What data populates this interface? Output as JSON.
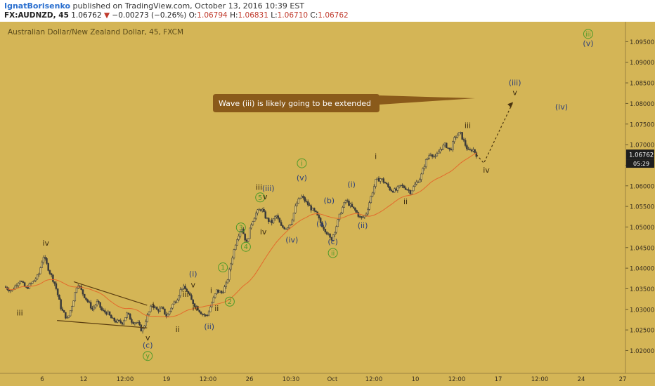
{
  "header": {
    "author": "IgnatBorisenko",
    "published_text": " published on TradingView.com, October 13, 2016 10:39 EST",
    "symbol": "FX:AUDNZD, 45",
    "last": "1.06762",
    "change": "−0.00273 (−0.26%)",
    "o_label": "O:",
    "o_value": "1.06794",
    "h_label": "H:",
    "h_value": "1.06831",
    "l_label": "L:",
    "l_value": "1.06710",
    "c_label": "C:",
    "c_value": "1.06762"
  },
  "chart_title": "Australian Dollar/New Zealand Dollar, 45, FXCM",
  "annotation": "Wave (iii) is likely going to be extended",
  "colors": {
    "background": "#d4b556",
    "candles": "#3a3a3a",
    "moving_average": "#e36a2c",
    "wave_labels_major": "#2b3f7a",
    "wave_labels_minor": "#3a2a10",
    "circled_labels": "#4e9a2a",
    "callout": "#8a5a1a"
  },
  "chart_data": {
    "type": "candlestick",
    "title": "Australian Dollar/New Zealand Dollar, 45, FXCM",
    "x_tick_labels": [
      "6",
      "12",
      "12:00",
      "19",
      "12:00",
      "26",
      "10:30",
      "Oct",
      "12:00",
      "10",
      "12:00",
      "17",
      "12:00",
      "24",
      "27"
    ],
    "y_tick_labels": [
      "1.09500",
      "1.09000",
      "1.08500",
      "1.08000",
      "1.07500",
      "1.07000",
      "1.06500",
      "1.06000",
      "1.05500",
      "1.05000",
      "1.04500",
      "1.04000",
      "1.03500",
      "1.03000",
      "1.02500",
      "1.02000"
    ],
    "ylim": [
      1.0165,
      1.0995
    ],
    "last_price": "1.06762",
    "countdown": "05:29",
    "price_path": [
      [
        0.0,
        1.0355
      ],
      [
        0.012,
        1.0345
      ],
      [
        0.025,
        1.0372
      ],
      [
        0.035,
        1.035
      ],
      [
        0.045,
        1.0365
      ],
      [
        0.055,
        1.0382
      ],
      [
        0.063,
        1.043
      ],
      [
        0.072,
        1.0395
      ],
      [
        0.082,
        1.036
      ],
      [
        0.092,
        1.03
      ],
      [
        0.102,
        1.0275
      ],
      [
        0.11,
        1.0315
      ],
      [
        0.118,
        1.0365
      ],
      [
        0.126,
        1.034
      ],
      [
        0.134,
        1.032
      ],
      [
        0.142,
        1.03
      ],
      [
        0.15,
        1.0318
      ],
      [
        0.158,
        1.0295
      ],
      [
        0.166,
        1.0292
      ],
      [
        0.174,
        1.0275
      ],
      [
        0.182,
        1.027
      ],
      [
        0.19,
        1.0268
      ],
      [
        0.198,
        1.029
      ],
      [
        0.206,
        1.027
      ],
      [
        0.214,
        1.0268
      ],
      [
        0.222,
        1.0247
      ],
      [
        0.23,
        1.0282
      ],
      [
        0.238,
        1.0312
      ],
      [
        0.246,
        1.0298
      ],
      [
        0.254,
        1.0302
      ],
      [
        0.262,
        1.0282
      ],
      [
        0.27,
        1.031
      ],
      [
        0.278,
        1.0325
      ],
      [
        0.286,
        1.0355
      ],
      [
        0.294,
        1.0345
      ],
      [
        0.302,
        1.032
      ],
      [
        0.31,
        1.0305
      ],
      [
        0.318,
        1.029
      ],
      [
        0.326,
        1.0283
      ],
      [
        0.334,
        1.0315
      ],
      [
        0.342,
        1.0345
      ],
      [
        0.35,
        1.034
      ],
      [
        0.358,
        1.0362
      ],
      [
        0.366,
        1.042
      ],
      [
        0.374,
        1.047
      ],
      [
        0.382,
        1.05
      ],
      [
        0.39,
        1.046
      ],
      [
        0.398,
        1.051
      ],
      [
        0.406,
        1.0535
      ],
      [
        0.414,
        1.0545
      ],
      [
        0.422,
        1.052
      ],
      [
        0.43,
        1.051
      ],
      [
        0.438,
        1.0528
      ],
      [
        0.446,
        1.05
      ],
      [
        0.454,
        1.0498
      ],
      [
        0.462,
        1.0512
      ],
      [
        0.47,
        1.0555
      ],
      [
        0.478,
        1.0575
      ],
      [
        0.486,
        1.056
      ],
      [
        0.494,
        1.0545
      ],
      [
        0.502,
        1.0532
      ],
      [
        0.51,
        1.0508
      ],
      [
        0.518,
        1.049
      ],
      [
        0.526,
        1.0468
      ],
      [
        0.534,
        1.05
      ],
      [
        0.542,
        1.0538
      ],
      [
        0.55,
        1.0565
      ],
      [
        0.558,
        1.055
      ],
      [
        0.566,
        1.0538
      ],
      [
        0.574,
        1.052
      ],
      [
        0.582,
        1.053
      ],
      [
        0.59,
        1.0572
      ],
      [
        0.598,
        1.0612
      ],
      [
        0.606,
        1.0618
      ],
      [
        0.614,
        1.0605
      ],
      [
        0.622,
        1.059
      ],
      [
        0.63,
        1.0588
      ],
      [
        0.638,
        1.06
      ],
      [
        0.646,
        1.0595
      ],
      [
        0.654,
        1.0585
      ],
      [
        0.662,
        1.0605
      ],
      [
        0.67,
        1.062
      ],
      [
        0.678,
        1.0658
      ],
      [
        0.686,
        1.068
      ],
      [
        0.694,
        1.0668
      ],
      [
        0.702,
        1.069
      ],
      [
        0.71,
        1.07
      ],
      [
        0.718,
        1.0685
      ],
      [
        0.726,
        1.072
      ],
      [
        0.734,
        1.0728
      ],
      [
        0.742,
        1.07
      ],
      [
        0.748,
        1.0682
      ],
      [
        0.754,
        1.069
      ],
      [
        0.76,
        1.0676
      ]
    ],
    "projection_path": [
      [
        0.76,
        1.0676
      ],
      [
        0.772,
        1.0655
      ],
      [
        0.818,
        1.08
      ]
    ]
  },
  "wave_labels": [
    {
      "t": "iii",
      "cls": "minor",
      "x": 0.025,
      "y": 1.0285
    },
    {
      "t": "iv",
      "cls": "minor",
      "x": 0.067,
      "y": 1.0455
    },
    {
      "t": "v",
      "cls": "minor",
      "x": 0.231,
      "y": 1.0225
    },
    {
      "t": "(c)",
      "cls": "major",
      "x": 0.231,
      "y": 1.0207
    },
    {
      "t": "y",
      "cls": "circled",
      "x": 0.231,
      "y": 1.018
    },
    {
      "t": "i",
      "cls": "minor",
      "x": 0.24,
      "y": 1.0305
    },
    {
      "t": "ii",
      "cls": "minor",
      "x": 0.279,
      "y": 1.0245
    },
    {
      "t": "iii",
      "cls": "minor",
      "x": 0.292,
      "y": 1.033
    },
    {
      "t": "(i)",
      "cls": "major",
      "x": 0.304,
      "y": 1.038
    },
    {
      "t": "v",
      "cls": "minor",
      "x": 0.304,
      "y": 1.0353
    },
    {
      "t": "iv",
      "cls": "minor",
      "x": 0.308,
      "y": 1.0297
    },
    {
      "t": "(ii)",
      "cls": "major",
      "x": 0.33,
      "y": 1.0252
    },
    {
      "t": "i",
      "cls": "minor",
      "x": 0.333,
      "y": 1.034
    },
    {
      "t": "ii",
      "cls": "minor",
      "x": 0.342,
      "y": 1.0296
    },
    {
      "t": "1",
      "cls": "circled",
      "x": 0.352,
      "y": 1.0395
    },
    {
      "t": "2",
      "cls": "circled",
      "x": 0.363,
      "y": 1.0312
    },
    {
      "t": "3",
      "cls": "circled",
      "x": 0.381,
      "y": 1.0492
    },
    {
      "t": "4",
      "cls": "circled",
      "x": 0.389,
      "y": 1.0445
    },
    {
      "t": "5",
      "cls": "circled",
      "x": 0.412,
      "y": 1.0565
    },
    {
      "t": "iii",
      "cls": "minor",
      "x": 0.41,
      "y": 1.059
    },
    {
      "t": "v",
      "cls": "minor",
      "x": 0.42,
      "y": 1.0567
    },
    {
      "t": "(iii)",
      "cls": "major",
      "x": 0.425,
      "y": 1.0588
    },
    {
      "t": "iv",
      "cls": "minor",
      "x": 0.417,
      "y": 1.0482
    },
    {
      "t": "(iv)",
      "cls": "major",
      "x": 0.463,
      "y": 1.0462
    },
    {
      "t": "i",
      "cls": "circled",
      "x": 0.479,
      "y": 1.0648
    },
    {
      "t": "(v)",
      "cls": "major",
      "x": 0.479,
      "y": 1.0613
    },
    {
      "t": "(b)",
      "cls": "major",
      "x": 0.523,
      "y": 1.0558
    },
    {
      "t": "(a)",
      "cls": "major",
      "x": 0.511,
      "y": 1.0502
    },
    {
      "t": "(c)",
      "cls": "major",
      "x": 0.529,
      "y": 1.0458
    },
    {
      "t": "ii",
      "cls": "circled",
      "x": 0.529,
      "y": 1.043
    },
    {
      "t": "(i)",
      "cls": "major",
      "x": 0.559,
      "y": 1.0597
    },
    {
      "t": "(ii)",
      "cls": "major",
      "x": 0.577,
      "y": 1.0497
    },
    {
      "t": "i",
      "cls": "minor",
      "x": 0.598,
      "y": 1.0665
    },
    {
      "t": "ii",
      "cls": "minor",
      "x": 0.646,
      "y": 1.0555
    },
    {
      "t": "iii",
      "cls": "minor",
      "x": 0.746,
      "y": 1.074
    },
    {
      "t": "iv",
      "cls": "minor",
      "x": 0.776,
      "y": 1.0632
    },
    {
      "t": "(iii)",
      "cls": "major",
      "x": 0.822,
      "y": 1.0844
    },
    {
      "t": "v",
      "cls": "minor",
      "x": 0.822,
      "y": 1.082
    },
    {
      "t": "(iv)",
      "cls": "major",
      "x": 0.897,
      "y": 1.0785
    },
    {
      "t": "iii",
      "cls": "circled",
      "x": 0.94,
      "y": 1.0962
    },
    {
      "t": "(v)",
      "cls": "major",
      "x": 0.94,
      "y": 1.094
    }
  ]
}
